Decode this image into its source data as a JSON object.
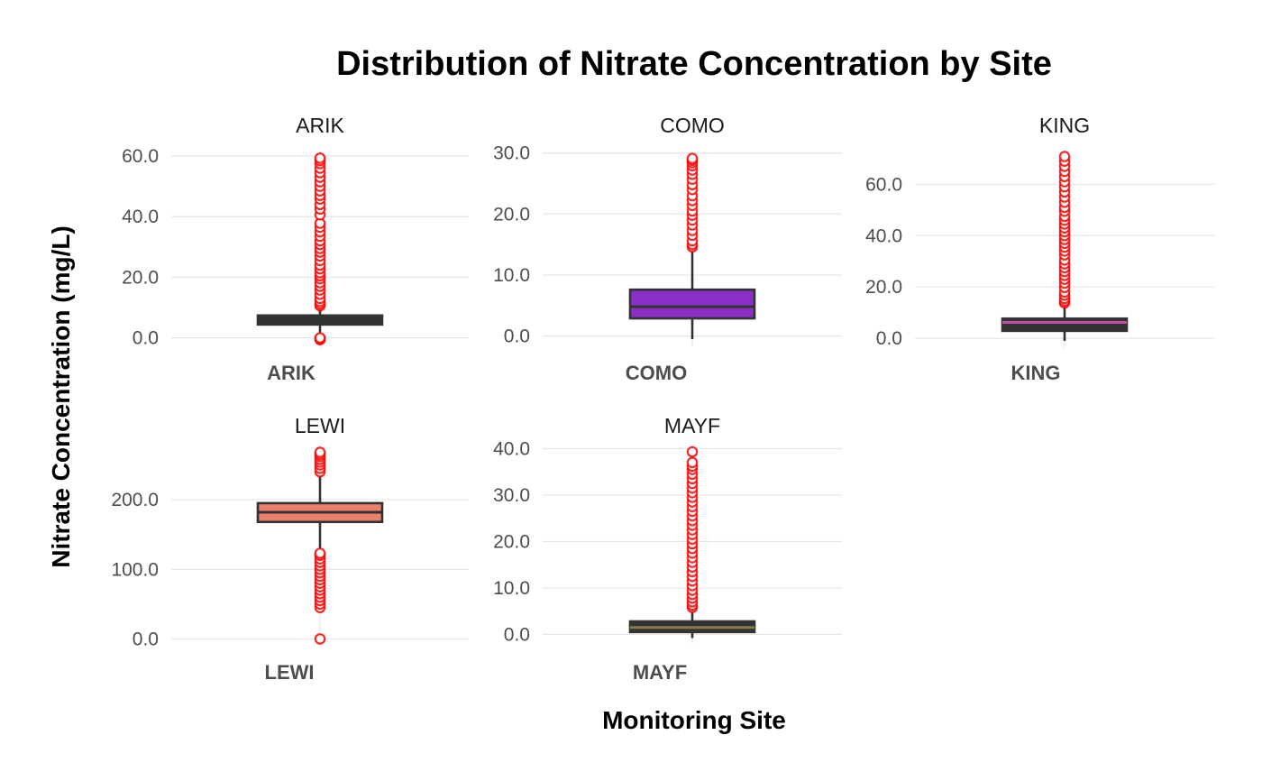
{
  "chart_data": {
    "type": "boxplot",
    "title": "Distribution of Nitrate Concentration by Site",
    "xlabel": "Monitoring Site",
    "ylabel": "Nitrate Concentration (mg/L)",
    "facets": [
      {
        "site": "ARIK",
        "fill": "#333333",
        "median_color": "#333333",
        "ylim": [
          -1,
          60
        ],
        "yticks": [
          0,
          20,
          40,
          60
        ],
        "ytick_labels": [
          "0.0",
          "20.0",
          "40.0",
          "60.0"
        ],
        "q1": 4.4,
        "median": 5.6,
        "q3": 7.4,
        "whisker_low": 0.8,
        "whisker_high": 10.4,
        "outliers": [
          -0.6,
          -0.3,
          0.0,
          10.6,
          11.2,
          12.0,
          13.0,
          14.4,
          15.8,
          17.0,
          18.2,
          19.5,
          20.5,
          21.5,
          22.8,
          24.0,
          25.5,
          27.0,
          28.3,
          29.5,
          30.8,
          32.0,
          33.5,
          35.0,
          36.5,
          37.8,
          40.6,
          42.5,
          44.0,
          45.8,
          47.0,
          48.5,
          50.0,
          51.5,
          53.0,
          54.5,
          56.0,
          57.5,
          58.5,
          59.3
        ]
      },
      {
        "site": "COMO",
        "fill": "#8b2fc9",
        "median_color": "#333333",
        "ylim": [
          -0.5,
          29.5
        ],
        "yticks": [
          0,
          10,
          20,
          30
        ],
        "ytick_labels": [
          "0.0",
          "10.0",
          "20.0",
          "30.0"
        ],
        "q1": 2.9,
        "median": 4.8,
        "q3": 7.6,
        "whisker_low": -0.5,
        "whisker_high": 14.5,
        "outliers": [
          14.6,
          15.0,
          15.6,
          16.5,
          17.3,
          18.2,
          19.0,
          19.8,
          20.5,
          21.4,
          22.2,
          23.0,
          24.0,
          24.8,
          25.7,
          26.5,
          27.2,
          27.9,
          28.4,
          28.8,
          29.1
        ]
      },
      {
        "site": "KING",
        "fill": "#333333",
        "median_color": "#c34ba8",
        "ylim": [
          -1,
          71
        ],
        "yticks": [
          0,
          20,
          40,
          60
        ],
        "ytick_labels": [
          "0.0",
          "20.0",
          "40.0",
          "60.0"
        ],
        "q1": 2.9,
        "median": 6.2,
        "q3": 7.7,
        "whisker_low": -1.0,
        "whisker_high": 13.0,
        "outliers": [
          13.8,
          14.5,
          15.5,
          16.8,
          18.0,
          19.8,
          21.5,
          23.0,
          24.5,
          26.0,
          27.5,
          29.0,
          30.5,
          32.5,
          34.0,
          35.5,
          37.0,
          38.5,
          40.0,
          41.5,
          43.0,
          44.5,
          46.0,
          47.5,
          49.5,
          51.0,
          53.0,
          55.0,
          57.0,
          59.0,
          61.0,
          63.0,
          65.0,
          67.0,
          69.0,
          70.8
        ]
      },
      {
        "site": "LEWI",
        "fill": "#e8806a",
        "median_color": "#333333",
        "ylim": [
          -2,
          270
        ],
        "yticks": [
          0,
          100,
          200
        ],
        "ytick_labels": [
          "0.0",
          "100.0",
          "200.0"
        ],
        "q1": 168,
        "median": 182,
        "q3": 195,
        "whisker_low": 125,
        "whisker_high": 238,
        "outliers": [
          0,
          45,
          50,
          55,
          60,
          65,
          70,
          75,
          80,
          85,
          90,
          95,
          100,
          105,
          110,
          115,
          120,
          123,
          240,
          245,
          250,
          254,
          258,
          262,
          265,
          268
        ]
      },
      {
        "site": "MAYF",
        "fill": "#333333",
        "median_color": "#8a7a4a",
        "ylim": [
          -0.5,
          39.5
        ],
        "yticks": [
          0,
          10,
          20,
          30,
          40
        ],
        "ytick_labels": [
          "0.0",
          "10.0",
          "20.0",
          "30.0",
          "40.0"
        ],
        "q1": 0.5,
        "median": 1.5,
        "q3": 2.8,
        "whisker_low": -0.8,
        "whisker_high": 5.5,
        "outliers": [
          5.8,
          6.3,
          7.0,
          7.8,
          8.6,
          9.5,
          10.5,
          11.5,
          12.5,
          13.5,
          14.5,
          15.5,
          16.5,
          17.5,
          18.5,
          19.5,
          20.5,
          21.5,
          22.5,
          23.5,
          24.5,
          25.5,
          26.5,
          27.5,
          28.5,
          29.5,
          30.5,
          31.5,
          32.5,
          33.5,
          34.5,
          35.5,
          36.2,
          37.0,
          39.3
        ]
      }
    ]
  }
}
